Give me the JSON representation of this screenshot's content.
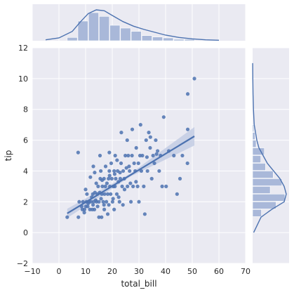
{
  "chart_data": {
    "type": "scatter",
    "title": "",
    "xlabel": "total_bill",
    "ylabel": "tip",
    "xlim": [
      -10,
      70
    ],
    "ylim": [
      -2,
      12
    ],
    "xticks": [
      "−10",
      "0",
      "10",
      "20",
      "30",
      "40",
      "50",
      "60",
      "70"
    ],
    "yticks": [
      "−2",
      "0",
      "2",
      "4",
      "6",
      "8",
      "10",
      "12"
    ],
    "grid": true,
    "background": "#eaeaf2",
    "colors": {
      "points": "#4c72b0",
      "bars": "#a9b8d9",
      "line": "#4c72b0",
      "band": "#c3cde4"
    },
    "scatter": [
      [
        3.1,
        1.0
      ],
      [
        7.3,
        1.0
      ],
      [
        8.8,
        1.5
      ],
      [
        10.1,
        1.7
      ],
      [
        12.5,
        1.5
      ],
      [
        15.0,
        1.0
      ],
      [
        16.0,
        1.0
      ],
      [
        7.2,
        5.2
      ],
      [
        7.6,
        2.0
      ],
      [
        8.5,
        1.7
      ],
      [
        9.0,
        2.0
      ],
      [
        9.6,
        1.5
      ],
      [
        10.3,
        2.0
      ],
      [
        10.5,
        2.5
      ],
      [
        10.8,
        1.7
      ],
      [
        11.2,
        2.0
      ],
      [
        11.6,
        1.5
      ],
      [
        12.0,
        2.0
      ],
      [
        12.3,
        2.3
      ],
      [
        12.7,
        2.5
      ],
      [
        13.0,
        2.0
      ],
      [
        13.3,
        1.5
      ],
      [
        13.5,
        2.6
      ],
      [
        13.8,
        2.1
      ],
      [
        14.1,
        2.0
      ],
      [
        14.4,
        2.5
      ],
      [
        14.7,
        3.0
      ],
      [
        15.0,
        2.0
      ],
      [
        15.3,
        2.6
      ],
      [
        15.5,
        3.5
      ],
      [
        15.8,
        2.2
      ],
      [
        16.1,
        2.5
      ],
      [
        16.3,
        3.0
      ],
      [
        16.6,
        2.0
      ],
      [
        16.9,
        3.5
      ],
      [
        17.1,
        2.5
      ],
      [
        17.4,
        3.0
      ],
      [
        17.8,
        2.0
      ],
      [
        18.0,
        3.2
      ],
      [
        18.3,
        2.5
      ],
      [
        18.6,
        3.5
      ],
      [
        18.9,
        4.0
      ],
      [
        19.1,
        3.0
      ],
      [
        19.4,
        2.5
      ],
      [
        19.8,
        3.5
      ],
      [
        20.1,
        2.0
      ],
      [
        20.4,
        3.0
      ],
      [
        20.7,
        4.0
      ],
      [
        21.0,
        3.0
      ],
      [
        21.3,
        3.5
      ],
      [
        21.7,
        2.5
      ],
      [
        22.0,
        4.0
      ],
      [
        22.3,
        3.3
      ],
      [
        22.7,
        2.0
      ],
      [
        23.0,
        3.5
      ],
      [
        23.3,
        4.5
      ],
      [
        23.7,
        3.0
      ],
      [
        24.1,
        4.0
      ],
      [
        24.5,
        3.5
      ],
      [
        24.9,
        5.0
      ],
      [
        25.3,
        4.2
      ],
      [
        25.7,
        3.0
      ],
      [
        26.0,
        5.0
      ],
      [
        26.5,
        4.0
      ],
      [
        27.0,
        2.0
      ],
      [
        27.4,
        5.0
      ],
      [
        27.8,
        3.0
      ],
      [
        28.2,
        4.5
      ],
      [
        28.6,
        4.0
      ],
      [
        29.0,
        5.5
      ],
      [
        29.5,
        3.0
      ],
      [
        30.0,
        2.0
      ],
      [
        30.4,
        5.0
      ],
      [
        30.9,
        4.0
      ],
      [
        31.3,
        5.0
      ],
      [
        31.8,
        3.0
      ],
      [
        32.2,
        1.2
      ],
      [
        32.7,
        6.0
      ],
      [
        33.2,
        4.0
      ],
      [
        33.7,
        6.5
      ],
      [
        34.2,
        5.5
      ],
      [
        34.8,
        3.5
      ],
      [
        35.3,
        5.0
      ],
      [
        35.8,
        4.5
      ],
      [
        36.3,
        6.0
      ],
      [
        37.0,
        5.3
      ],
      [
        37.6,
        4.0
      ],
      [
        38.1,
        5.0
      ],
      [
        38.7,
        3.0
      ],
      [
        39.3,
        7.5
      ],
      [
        40.2,
        3.0
      ],
      [
        41.2,
        5.3
      ],
      [
        43.1,
        5.0
      ],
      [
        44.3,
        2.5
      ],
      [
        45.4,
        3.5
      ],
      [
        46.3,
        5.0
      ],
      [
        48.3,
        9.0
      ],
      [
        48.3,
        6.7
      ],
      [
        50.8,
        10.0
      ],
      [
        48.2,
        4.5
      ],
      [
        9.5,
        1.3
      ],
      [
        11.0,
        1.9
      ],
      [
        12.8,
        1.8
      ],
      [
        14.5,
        1.7
      ],
      [
        16.9,
        1.8
      ],
      [
        18.7,
        1.8
      ],
      [
        20.3,
        2.2
      ],
      [
        22.4,
        2.3
      ],
      [
        24.6,
        2.8
      ],
      [
        26.8,
        3.2
      ],
      [
        28.9,
        3.3
      ],
      [
        14.0,
        3.2
      ],
      [
        15.7,
        4.0
      ],
      [
        17.5,
        4.3
      ],
      [
        19.6,
        4.5
      ],
      [
        21.8,
        4.7
      ],
      [
        23.4,
        6.5
      ],
      [
        25.6,
        6.0
      ],
      [
        27.5,
        6.7
      ],
      [
        11.8,
        3.6
      ],
      [
        13.4,
        3.9
      ],
      [
        10.0,
        2.8
      ],
      [
        12.9,
        4.3
      ],
      [
        16.2,
        3.4
      ],
      [
        19.0,
        3.7
      ],
      [
        20.9,
        3.8
      ],
      [
        22.9,
        3.9
      ],
      [
        26.3,
        4.3
      ],
      [
        29.8,
        4.5
      ],
      [
        33.0,
        4.9
      ],
      [
        36.6,
        5.1
      ],
      [
        17.0,
        1.5
      ],
      [
        18.3,
        1.2
      ],
      [
        20.7,
        1.5
      ],
      [
        24.0,
        1.8
      ],
      [
        15.4,
        5.0
      ],
      [
        18.9,
        5.2
      ],
      [
        21.1,
        5.0
      ],
      [
        30.6,
        7.0
      ],
      [
        34.3,
        6.2
      ]
    ],
    "regression": {
      "x_start": 3.1,
      "x_end": 50.8,
      "intercept": 0.92,
      "slope": 0.105,
      "ci_start": 0.3,
      "ci_mid": 0.1,
      "ci_end": 0.6
    },
    "marginal_x_hist": {
      "bin_edges": [
        3.1,
        7.1,
        11.1,
        15.1,
        19.1,
        23.1,
        27.1,
        31.1,
        35.1,
        39.1,
        43.1,
        47.1,
        51.1
      ],
      "counts": [
        7,
        42,
        60,
        52,
        33,
        27,
        20,
        11,
        8,
        6,
        3,
        3
      ]
    },
    "marginal_x_kde": {
      "x": [
        -5,
        0,
        5,
        8,
        11,
        14,
        17,
        20,
        24,
        28,
        32,
        36,
        40,
        45,
        50,
        55,
        60
      ],
      "density": [
        0.002,
        0.006,
        0.02,
        0.04,
        0.058,
        0.066,
        0.064,
        0.054,
        0.041,
        0.031,
        0.024,
        0.018,
        0.012,
        0.007,
        0.004,
        0.002,
        0.001
      ]
    },
    "marginal_y_hist": {
      "bin_edges": [
        1.0,
        1.5,
        2.0,
        2.5,
        3.0,
        3.5,
        4.0,
        4.5,
        5.0,
        5.5,
        6.0,
        6.5,
        7.0
      ],
      "counts": [
        15,
        40,
        55,
        30,
        50,
        35,
        22,
        14,
        20,
        6,
        4,
        2
      ]
    },
    "marginal_y_kde": {
      "y": [
        0,
        1.0,
        1.5,
        2.0,
        2.5,
        3.0,
        3.5,
        4.0,
        4.5,
        5.0,
        5.5,
        6.0,
        7.0,
        8.0,
        9.0,
        10.0,
        11.0
      ],
      "density": [
        0.01,
        0.08,
        0.18,
        0.3,
        0.32,
        0.3,
        0.26,
        0.2,
        0.14,
        0.1,
        0.06,
        0.04,
        0.015,
        0.008,
        0.004,
        0.002,
        0.001
      ]
    }
  }
}
